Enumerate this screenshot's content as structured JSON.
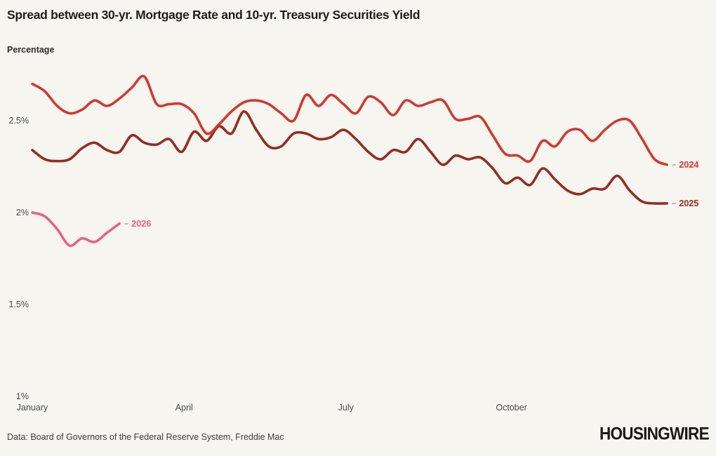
{
  "header": {
    "title": "Spread between 30-yr. Mortgage Rate and 10-yr. Treasury Securities Yield",
    "y_axis_title": "Percentage"
  },
  "footer": {
    "source": "Data: Board of Governors of the Federal Reserve System, Freddie Mac",
    "brand": "HOUSINGWIRE"
  },
  "colors": {
    "background": "#f7f5f0",
    "tick_dash": "#b3bcbe",
    "axis_text": "#4a4a48"
  },
  "chart_data": {
    "type": "line",
    "title": "Spread between 30-yr. Mortgage Rate and 10-yr. Treasury Securities Yield",
    "xlabel": "",
    "ylabel": "Percentage",
    "x_unit": "week of year",
    "ylim": [
      1,
      2.8
    ],
    "grid": false,
    "legend_position": "line-end-right",
    "y_ticks": [
      {
        "label": "2.5%",
        "value": 2.5
      },
      {
        "label": "2%",
        "value": 2.0
      },
      {
        "label": "1.5%",
        "value": 1.5
      },
      {
        "label": "1%",
        "value": 1.0
      }
    ],
    "x_ticks": [
      {
        "label": "January",
        "week": 1
      },
      {
        "label": "April",
        "week": 13.2
      },
      {
        "label": "July",
        "week": 26.2
      },
      {
        "label": "October",
        "week": 39.5
      }
    ],
    "series": [
      {
        "name": "2025",
        "color": "#932d24",
        "values": [
          2.34,
          2.29,
          2.28,
          2.29,
          2.35,
          2.38,
          2.34,
          2.33,
          2.42,
          2.38,
          2.37,
          2.4,
          2.33,
          2.44,
          2.39,
          2.47,
          2.43,
          2.55,
          2.45,
          2.36,
          2.36,
          2.43,
          2.43,
          2.4,
          2.41,
          2.45,
          2.4,
          2.33,
          2.29,
          2.34,
          2.33,
          2.4,
          2.33,
          2.26,
          2.31,
          2.29,
          2.3,
          2.24,
          2.16,
          2.19,
          2.15,
          2.24,
          2.18,
          2.12,
          2.1,
          2.13,
          2.13,
          2.2,
          2.12,
          2.06,
          2.05,
          2.05
        ]
      },
      {
        "name": "2024",
        "color": "#cf3a32",
        "values": [
          2.7,
          2.66,
          2.58,
          2.54,
          2.56,
          2.61,
          2.58,
          2.62,
          2.68,
          2.74,
          2.59,
          2.59,
          2.59,
          2.54,
          2.43,
          2.48,
          2.55,
          2.6,
          2.61,
          2.59,
          2.54,
          2.5,
          2.64,
          2.58,
          2.64,
          2.59,
          2.54,
          2.63,
          2.6,
          2.53,
          2.61,
          2.58,
          2.6,
          2.61,
          2.51,
          2.51,
          2.52,
          2.42,
          2.32,
          2.31,
          2.28,
          2.39,
          2.36,
          2.44,
          2.45,
          2.39,
          2.45,
          2.5,
          2.5,
          2.4,
          2.29,
          2.26
        ]
      },
      {
        "name": "2026",
        "color": "#e76287",
        "values": [
          2.0,
          1.98,
          1.91,
          1.82,
          1.86,
          1.84,
          1.89,
          1.94
        ]
      }
    ]
  }
}
